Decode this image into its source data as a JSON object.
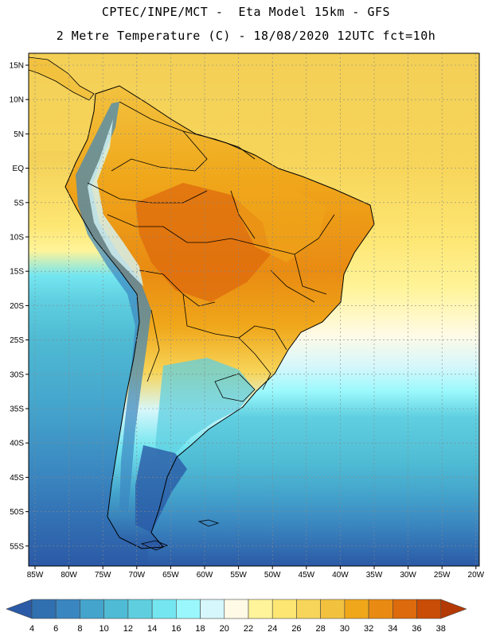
{
  "title_line1": "CPTEC/INPE/MCT -  Eta Model 15km - GFS",
  "title_line2": "2 Metre Temperature (C) - 18/08/2020 12UTC fct=10h",
  "lat_labels": [
    "15N",
    "10N",
    "5N",
    "EQ",
    "5S",
    "10S",
    "15S",
    "20S",
    "25S",
    "30S",
    "35S",
    "40S",
    "45S",
    "50S",
    "55S"
  ],
  "lon_labels": [
    "85W",
    "80W",
    "75W",
    "70W",
    "65W",
    "60W",
    "55W",
    "50W",
    "45W",
    "40W",
    "35W",
    "30W",
    "25W",
    "20W"
  ],
  "colorbar": {
    "labels": [
      "4",
      "6",
      "8",
      "10",
      "12",
      "14",
      "16",
      "18",
      "20",
      "22",
      "24",
      "26",
      "28",
      "30",
      "32",
      "34",
      "36",
      "38"
    ],
    "colors": [
      "#2b5aa6",
      "#3070b0",
      "#3a86c0",
      "#44a4cc",
      "#4fbbd4",
      "#5fcfe0",
      "#74e6f0",
      "#9af8fc",
      "#d6f7fb",
      "#fffae6",
      "#fff49a",
      "#fde672",
      "#f7d55a",
      "#f2c23f",
      "#f0a71a",
      "#e98b12",
      "#dd6a0c",
      "#c94d06",
      "#b33a05"
    ]
  }
}
